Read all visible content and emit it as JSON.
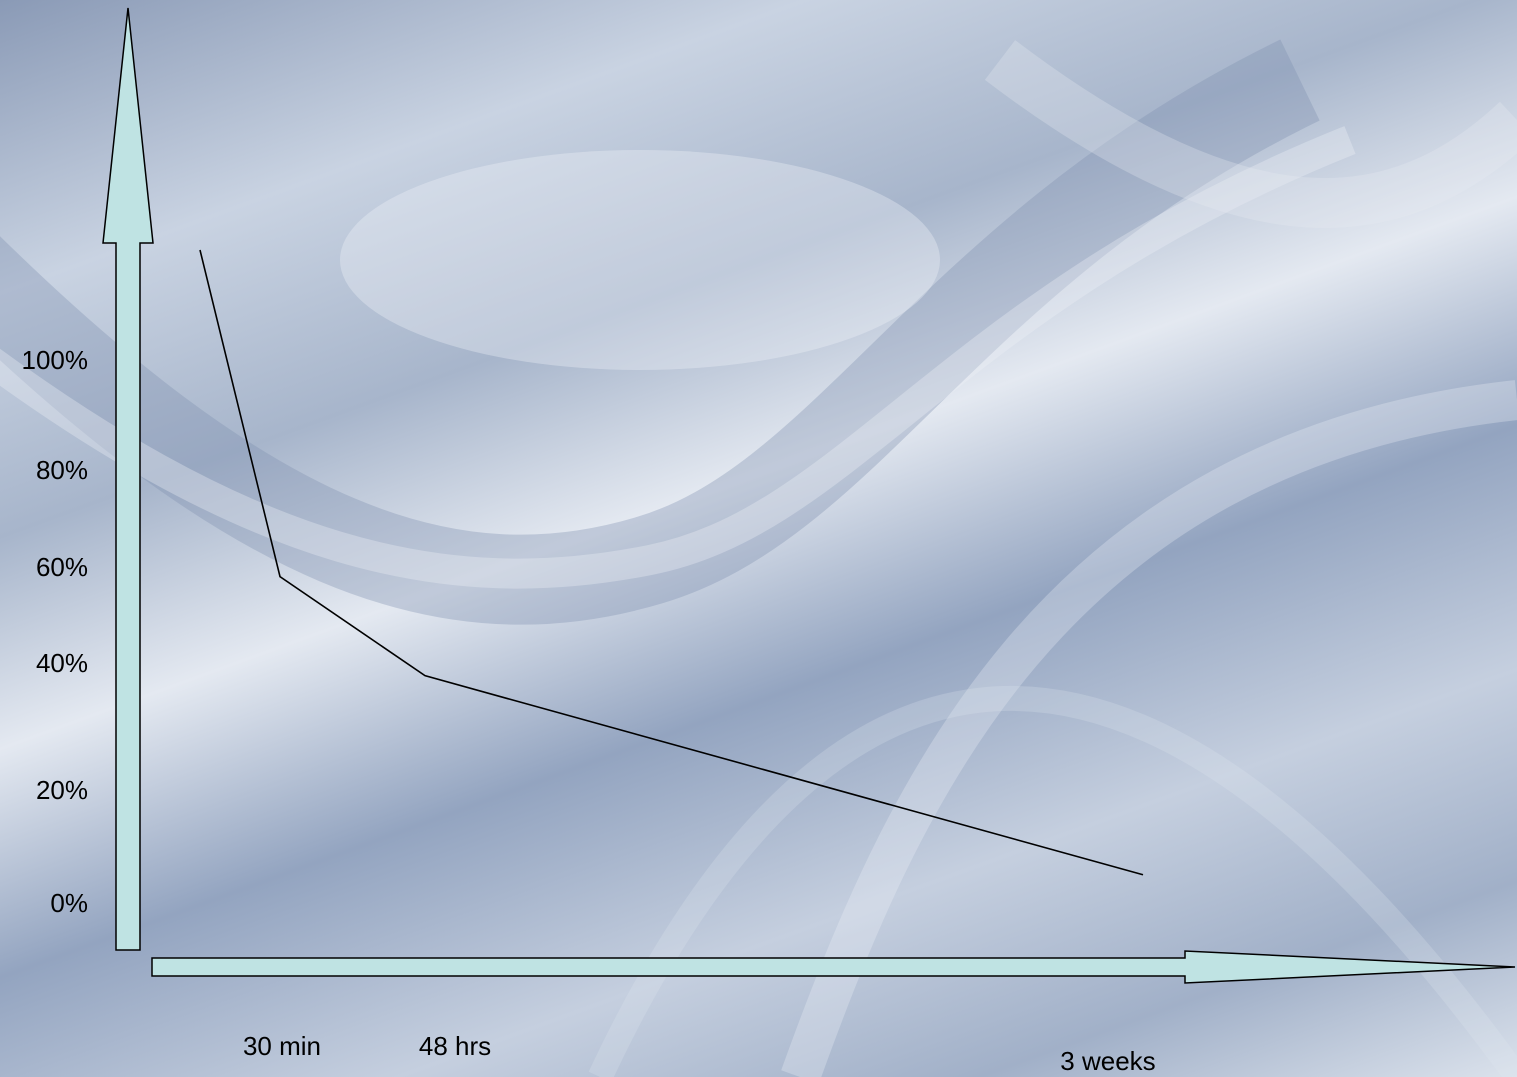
{
  "colors": {
    "axis_fill": "#bfe3e3",
    "axis_stroke": "#000000",
    "line": "#000000"
  },
  "chart_data": {
    "type": "line",
    "title": "",
    "xlabel": "",
    "ylabel": "",
    "grid": false,
    "ylim": [
      0,
      100
    ],
    "y_ticks": [
      "0%",
      "20%",
      "40%",
      "60%",
      "80%",
      "100%"
    ],
    "x_ticks": [
      "30 min",
      "48 hrs",
      "3 weeks"
    ],
    "series": [
      {
        "x": [
          0,
          1,
          2,
          3
        ],
        "x_labels": [
          "",
          "30 min",
          "48 hrs",
          "3 weeks"
        ],
        "values": [
          120,
          58,
          38,
          5
        ]
      }
    ]
  }
}
